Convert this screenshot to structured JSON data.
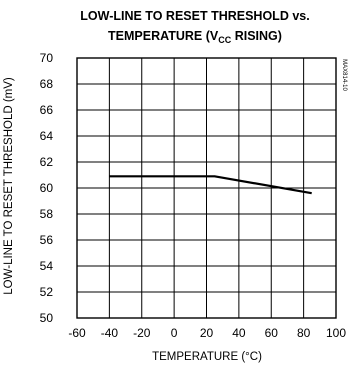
{
  "chart_data": {
    "type": "line",
    "title_line1": "LOW-LINE TO RESET THRESHOLD vs.",
    "title_line2_prefix": "TEMPERATURE (V",
    "title_line2_sub": "CC",
    "title_line2_suffix": " RISING)",
    "xlabel": "TEMPERATURE (°C)",
    "ylabel": "LOW-LINE TO RESET THRESHOLD (mV)",
    "watermark": "MAX814-10",
    "xlim": [
      -60,
      100
    ],
    "ylim": [
      50,
      70
    ],
    "xticks": [
      "-60",
      "-40",
      "-20",
      "0",
      "20",
      "40",
      "60",
      "80",
      "100"
    ],
    "yticks": [
      "70",
      "68",
      "66",
      "64",
      "62",
      "60",
      "58",
      "56",
      "54",
      "52",
      "50"
    ],
    "grid": true,
    "series": [
      {
        "x": [
          -40,
          25,
          85
        ],
        "y": [
          60.9,
          60.9,
          59.6
        ]
      }
    ]
  }
}
